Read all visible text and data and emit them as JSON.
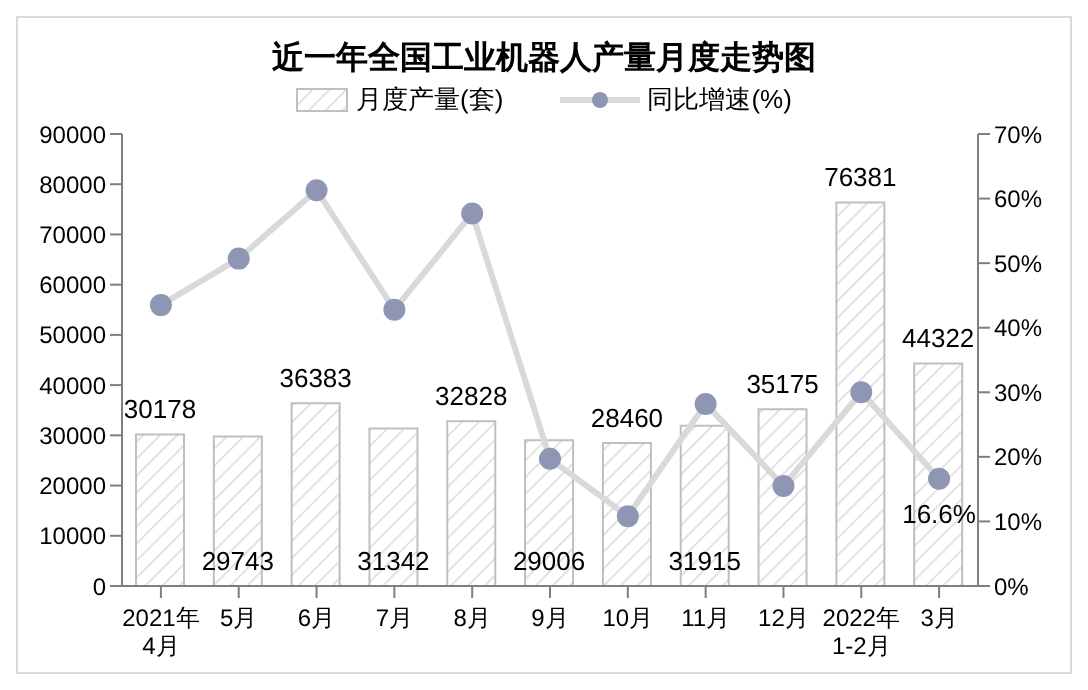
{
  "chart_data": {
    "type": "bar",
    "title": "近一年全国工业机器人产量月度走势图",
    "categories": [
      "2021年\n4月",
      "5月",
      "6月",
      "7月",
      "8月",
      "9月",
      "10月",
      "11月",
      "12月",
      "2022年\n1-2月",
      "3月"
    ],
    "series": [
      {
        "name": "月度产量(套)",
        "color": "#bfbfbf",
        "values": [
          30178,
          29743,
          36383,
          31342,
          32828,
          29006,
          28460,
          31915,
          35175,
          76381,
          44322
        ],
        "value_labels": [
          "30178",
          "29743",
          "36383",
          "31342",
          "32828",
          "29006",
          "28460",
          "31915",
          "35175",
          "76381",
          "44322"
        ]
      },
      {
        "name": "同比增速(%)",
        "type": "line",
        "axis": "y2",
        "color": "#d9d9d9",
        "marker": "circle",
        "values": [
          43.5,
          50.7,
          61.3,
          42.8,
          57.7,
          19.7,
          10.8,
          28.2,
          15.5,
          30.0,
          16.6
        ],
        "value_labels": [
          null,
          null,
          null,
          null,
          null,
          null,
          null,
          null,
          null,
          null,
          "16.6%"
        ]
      }
    ],
    "ylim": [
      0,
      90000
    ],
    "yticks": [
      0,
      10000,
      20000,
      30000,
      40000,
      50000,
      60000,
      70000,
      80000,
      90000
    ],
    "y2lim": [
      0,
      70
    ],
    "y2ticks": [
      {
        "value": 0,
        "label": "0%"
      },
      {
        "value": 10,
        "label": "10%"
      },
      {
        "value": 20,
        "label": "20%"
      },
      {
        "value": 30,
        "label": "30%"
      },
      {
        "value": 40,
        "label": "40%"
      },
      {
        "value": 50,
        "label": "50%"
      },
      {
        "value": 60,
        "label": "60%"
      },
      {
        "value": 70,
        "label": "70%"
      }
    ],
    "grid": false,
    "legend": "top"
  }
}
